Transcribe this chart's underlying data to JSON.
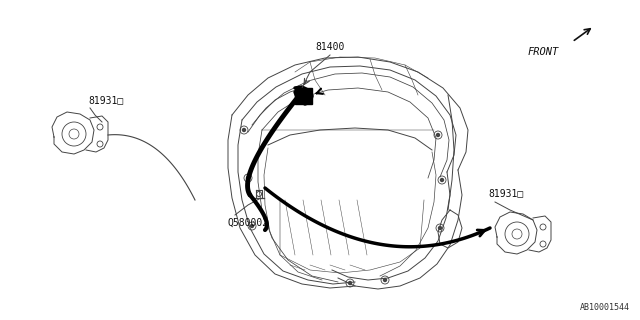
{
  "bg_color": "#ffffff",
  "line_color": "#444444",
  "thick_line_color": "#000000",
  "label_81400": "81400",
  "label_81931_left": "81931□",
  "label_81931_right": "81931□",
  "label_Q580002": "Q580002",
  "label_FRONT": "FRONT",
  "label_AB10001544": "AB10001544",
  "fig_width": 6.4,
  "fig_height": 3.2,
  "dpi": 100
}
